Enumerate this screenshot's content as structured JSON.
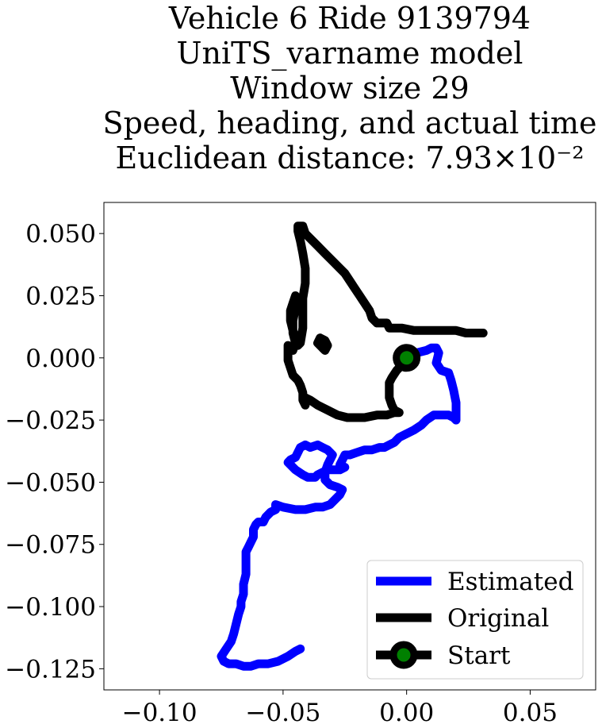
{
  "chart_data": {
    "type": "line",
    "title_lines": [
      "Vehicle 6 Ride 9139794",
      "UniTS_varname model",
      "Window size 29",
      "Speed, heading, and actual time",
      "Euclidean distance: 7.93×10⁻²"
    ],
    "xlabel": "",
    "ylabel": "",
    "xlim": [
      -0.1225,
      0.0765
    ],
    "ylim": [
      -0.1335,
      0.0625
    ],
    "xticks": [
      -0.1,
      -0.05,
      0.0,
      0.05
    ],
    "xtick_labels": [
      "−0.10",
      "−0.05",
      "0.00",
      "0.05"
    ],
    "yticks": [
      0.05,
      0.025,
      0.0,
      -0.025,
      -0.05,
      -0.075,
      -0.1,
      -0.125
    ],
    "ytick_labels": [
      "0.050",
      "0.025",
      "0.000",
      "−0.025",
      "−0.050",
      "−0.075",
      "−0.100",
      "−0.125"
    ],
    "grid": false,
    "legend_position": "bottom-right",
    "series": [
      {
        "name": "Estimated",
        "color": "#0000ff",
        "points": [
          [
            0,
            0
          ],
          [
            0.004,
            0.002
          ],
          [
            0.008,
            0.003
          ],
          [
            0.01,
            0.004
          ],
          [
            0.012,
            0.004
          ],
          [
            0.013,
            0.002
          ],
          [
            0.012,
            -0.002
          ],
          [
            0.014,
            -0.005
          ],
          [
            0.017,
            -0.006
          ],
          [
            0.018,
            -0.009
          ],
          [
            0.019,
            -0.013
          ],
          [
            0.02,
            -0.018
          ],
          [
            0.02,
            -0.022
          ],
          [
            0.02,
            -0.025
          ],
          [
            0.019,
            -0.024
          ],
          [
            0.017,
            -0.023
          ],
          [
            0.014,
            -0.023
          ],
          [
            0.011,
            -0.023
          ],
          [
            0.008,
            -0.025
          ],
          [
            0.006,
            -0.027
          ],
          [
            0.003,
            -0.029
          ],
          [
            0.001,
            -0.03
          ],
          [
            -0.003,
            -0.032
          ],
          [
            -0.005,
            -0.034
          ],
          [
            -0.007,
            -0.035
          ],
          [
            -0.009,
            -0.036
          ],
          [
            -0.011,
            -0.036
          ],
          [
            -0.014,
            -0.037
          ],
          [
            -0.017,
            -0.037
          ],
          [
            -0.02,
            -0.038
          ],
          [
            -0.023,
            -0.039
          ],
          [
            -0.025,
            -0.039
          ],
          [
            -0.026,
            -0.041
          ],
          [
            -0.027,
            -0.043
          ],
          [
            -0.025,
            -0.044
          ],
          [
            -0.027,
            -0.045
          ],
          [
            -0.03,
            -0.045
          ],
          [
            -0.032,
            -0.045
          ],
          [
            -0.034,
            -0.046
          ],
          [
            -0.036,
            -0.047
          ],
          [
            -0.037,
            -0.048
          ],
          [
            -0.04,
            -0.048
          ],
          [
            -0.042,
            -0.047
          ],
          [
            -0.045,
            -0.045
          ],
          [
            -0.047,
            -0.043
          ],
          [
            -0.048,
            -0.042
          ],
          [
            -0.047,
            -0.041
          ],
          [
            -0.045,
            -0.04
          ],
          [
            -0.044,
            -0.038
          ],
          [
            -0.043,
            -0.036
          ],
          [
            -0.041,
            -0.035
          ],
          [
            -0.039,
            -0.036
          ],
          [
            -0.036,
            -0.035
          ],
          [
            -0.034,
            -0.036
          ],
          [
            -0.032,
            -0.037
          ],
          [
            -0.03,
            -0.039
          ],
          [
            -0.032,
            -0.043
          ],
          [
            -0.033,
            -0.046
          ],
          [
            -0.033,
            -0.049
          ],
          [
            -0.031,
            -0.051
          ],
          [
            -0.028,
            -0.052
          ],
          [
            -0.026,
            -0.053
          ],
          [
            -0.027,
            -0.055
          ],
          [
            -0.029,
            -0.057
          ],
          [
            -0.031,
            -0.059
          ],
          [
            -0.034,
            -0.06
          ],
          [
            -0.037,
            -0.06
          ],
          [
            -0.041,
            -0.061
          ],
          [
            -0.045,
            -0.061
          ],
          [
            -0.05,
            -0.06
          ],
          [
            -0.053,
            -0.059
          ],
          [
            -0.053,
            -0.061
          ],
          [
            -0.055,
            -0.062
          ],
          [
            -0.057,
            -0.064
          ],
          [
            -0.058,
            -0.066
          ],
          [
            -0.06,
            -0.066
          ],
          [
            -0.061,
            -0.067
          ],
          [
            -0.062,
            -0.069
          ],
          [
            -0.062,
            -0.072
          ],
          [
            -0.063,
            -0.074
          ],
          [
            -0.064,
            -0.076
          ],
          [
            -0.065,
            -0.078
          ],
          [
            -0.065,
            -0.082
          ],
          [
            -0.065,
            -0.087
          ],
          [
            -0.066,
            -0.091
          ],
          [
            -0.066,
            -0.095
          ],
          [
            -0.067,
            -0.098
          ],
          [
            -0.067,
            -0.1
          ],
          [
            -0.068,
            -0.103
          ],
          [
            -0.069,
            -0.107
          ],
          [
            -0.07,
            -0.111
          ],
          [
            -0.071,
            -0.114
          ],
          [
            -0.073,
            -0.117
          ],
          [
            -0.075,
            -0.12
          ],
          [
            -0.074,
            -0.122
          ],
          [
            -0.072,
            -0.123
          ],
          [
            -0.069,
            -0.123
          ],
          [
            -0.066,
            -0.124
          ],
          [
            -0.063,
            -0.124
          ],
          [
            -0.06,
            -0.123
          ],
          [
            -0.056,
            -0.123
          ],
          [
            -0.052,
            -0.122
          ],
          [
            -0.048,
            -0.12
          ],
          [
            -0.045,
            -0.118
          ],
          [
            -0.043,
            -0.117
          ]
        ]
      },
      {
        "name": "Original",
        "color": "#000000",
        "points": [
          [
            0,
            0
          ],
          [
            -0.002,
            -0.003
          ],
          [
            -0.004,
            -0.005
          ],
          [
            -0.006,
            -0.008
          ],
          [
            -0.007,
            -0.01
          ],
          [
            -0.007,
            -0.013
          ],
          [
            -0.007,
            -0.016
          ],
          [
            -0.006,
            -0.019
          ],
          [
            -0.005,
            -0.021
          ],
          [
            -0.003,
            -0.022
          ],
          [
            -0.005,
            -0.022
          ],
          [
            -0.008,
            -0.023
          ],
          [
            -0.012,
            -0.023
          ],
          [
            -0.017,
            -0.024
          ],
          [
            -0.02,
            -0.024
          ],
          [
            -0.024,
            -0.024
          ],
          [
            -0.028,
            -0.023
          ],
          [
            -0.032,
            -0.021
          ],
          [
            -0.036,
            -0.019
          ],
          [
            -0.039,
            -0.017
          ],
          [
            -0.041,
            -0.016
          ],
          [
            -0.041,
            -0.019
          ],
          [
            -0.042,
            -0.017
          ],
          [
            -0.042,
            -0.014
          ],
          [
            -0.043,
            -0.011
          ],
          [
            -0.044,
            -0.009
          ],
          [
            -0.046,
            -0.007
          ],
          [
            -0.047,
            -0.004
          ],
          [
            -0.048,
            -0.001
          ],
          [
            -0.048,
            0.003
          ],
          [
            -0.048,
            0.005
          ],
          [
            -0.046,
            0.003
          ],
          [
            -0.045,
            0.006
          ],
          [
            -0.046,
            0.01
          ],
          [
            -0.046,
            0.015
          ],
          [
            -0.045,
            0.02
          ],
          [
            -0.045,
            0.025
          ],
          [
            -0.046,
            0.022
          ],
          [
            -0.047,
            0.019
          ],
          [
            -0.047,
            0.015
          ],
          [
            -0.046,
            0.011
          ],
          [
            -0.045,
            0.008
          ],
          [
            -0.044,
            0.005
          ],
          [
            -0.043,
            0.006
          ],
          [
            -0.042,
            0.012
          ],
          [
            -0.042,
            0.018
          ],
          [
            -0.042,
            0.024
          ],
          [
            -0.041,
            0.03
          ],
          [
            -0.041,
            0.036
          ],
          [
            -0.042,
            0.042
          ],
          [
            -0.043,
            0.047
          ],
          [
            -0.044,
            0.051
          ],
          [
            -0.044,
            0.053
          ],
          [
            -0.042,
            0.053
          ],
          [
            -0.041,
            0.05
          ],
          [
            -0.039,
            0.048
          ],
          [
            -0.036,
            0.045
          ],
          [
            -0.033,
            0.042
          ],
          [
            -0.03,
            0.039
          ],
          [
            -0.027,
            0.036
          ],
          [
            -0.025,
            0.034
          ],
          [
            -0.023,
            0.031
          ],
          [
            -0.021,
            0.028
          ],
          [
            -0.019,
            0.025
          ],
          [
            -0.017,
            0.022
          ],
          [
            -0.015,
            0.019
          ],
          [
            -0.014,
            0.016
          ],
          [
            -0.012,
            0.014
          ],
          [
            -0.01,
            0.014
          ],
          [
            -0.008,
            0.014
          ],
          [
            -0.007,
            0.012
          ],
          [
            -0.002,
            0.012
          ],
          [
            0.003,
            0.011
          ],
          [
            0.009,
            0.011
          ],
          [
            0.015,
            0.011
          ],
          [
            0.02,
            0.011
          ],
          [
            0.024,
            0.01
          ],
          [
            0.028,
            0.01
          ],
          [
            0.031,
            0.01
          ]
        ]
      },
      {
        "name": "Start",
        "color": "#000000",
        "marker_face_color": "#008000",
        "points": [
          [
            0,
            0
          ]
        ]
      }
    ],
    "extra_loop": [
      [
        -0.034,
        0.004
      ],
      [
        -0.036,
        0.006
      ],
      [
        -0.035,
        0.008
      ],
      [
        -0.033,
        0.007
      ],
      [
        -0.032,
        0.005
      ],
      [
        -0.033,
        0.003
      ],
      [
        -0.034,
        0.004
      ]
    ]
  }
}
